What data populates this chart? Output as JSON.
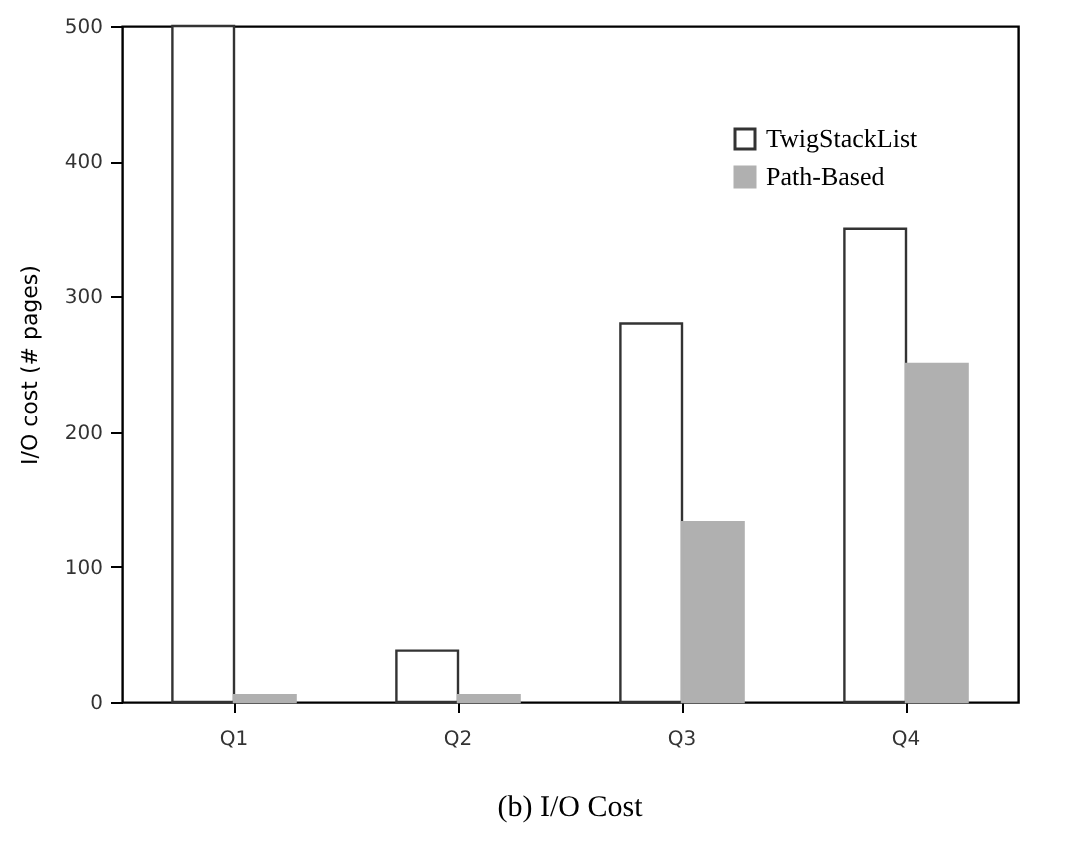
{
  "chart_data": {
    "type": "bar",
    "ylabel": "I/O cost (# pages)",
    "categories": [
      "Q1",
      "Q2",
      "Q3",
      "Q4"
    ],
    "series": [
      {
        "name": "TwigStackList",
        "color": "#ffffff",
        "values": [
          500,
          38,
          280,
          350
        ]
      },
      {
        "name": "Path-Based",
        "color": "#b0b0b0",
        "values": [
          5,
          5,
          133,
          250
        ]
      }
    ],
    "ylim": [
      0,
      500
    ],
    "yticks": [
      0,
      100,
      200,
      300,
      400,
      500
    ],
    "grid": false,
    "legend": "top right",
    "annotations": [
      "(b) I/O Cost"
    ]
  }
}
